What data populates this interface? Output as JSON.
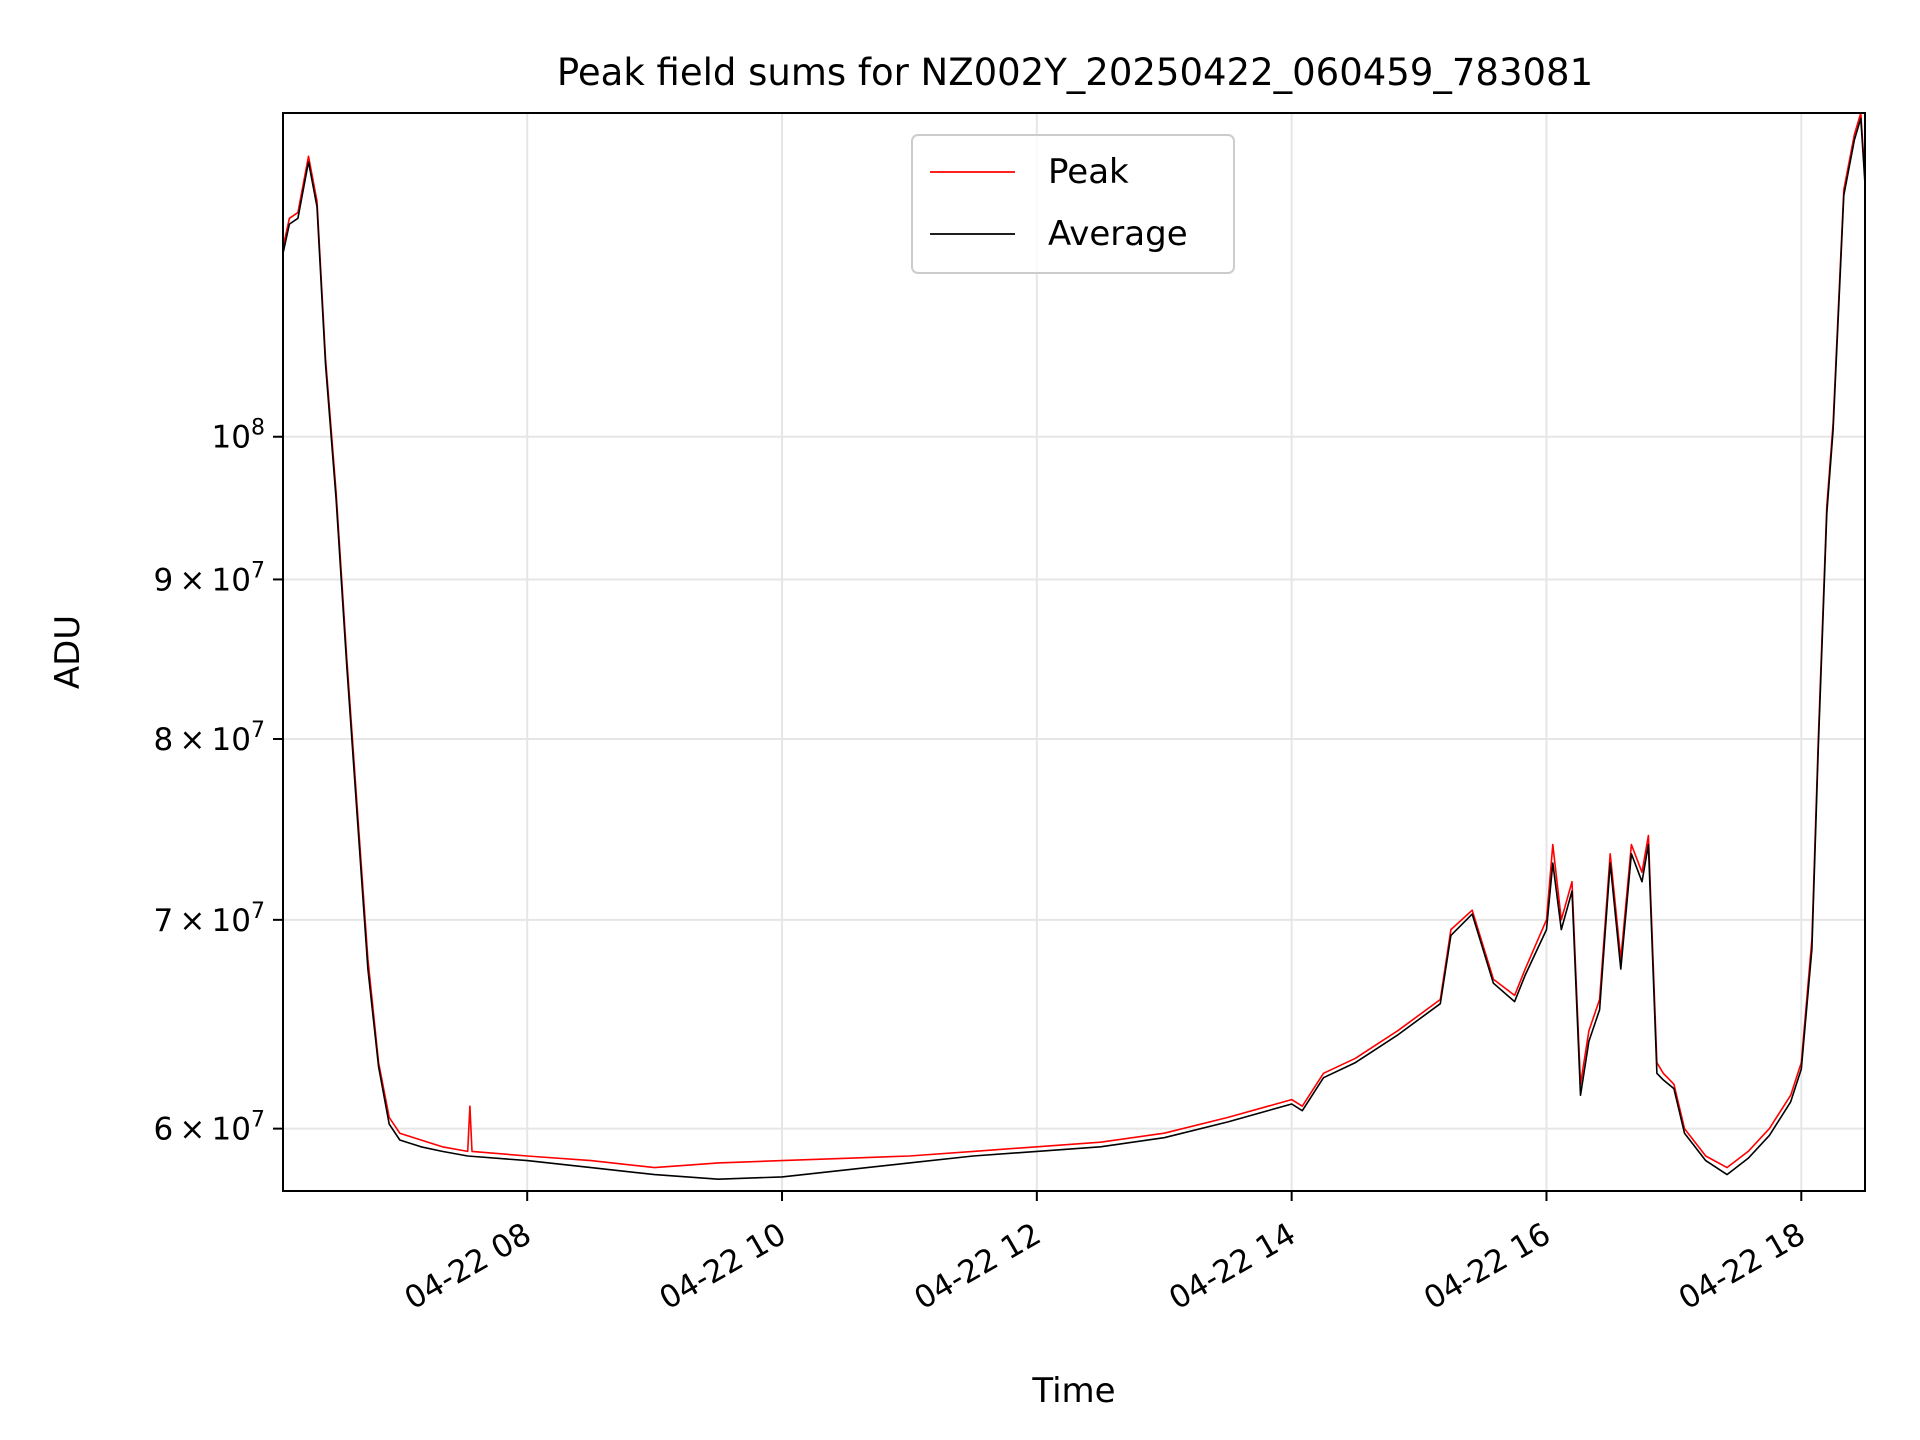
{
  "chart_data": {
    "type": "line",
    "title": "Peak field sums for NZ002Y_20250422_060459_783081",
    "xlabel": "Time",
    "ylabel": "ADU",
    "yscale": "log",
    "xlim": [
      "2025-04-22 06:05",
      "2025-04-22 18:30"
    ],
    "ylim": [
      57300000,
      127000000
    ],
    "grid": true,
    "legend_position": "upper center",
    "x_ticks": [
      {
        "value": "2025-04-22 08:00",
        "label": "04-22 08"
      },
      {
        "value": "2025-04-22 10:00",
        "label": "04-22 10"
      },
      {
        "value": "2025-04-22 12:00",
        "label": "04-22 12"
      },
      {
        "value": "2025-04-22 14:00",
        "label": "04-22 14"
      },
      {
        "value": "2025-04-22 16:00",
        "label": "04-22 16"
      },
      {
        "value": "2025-04-22 18:00",
        "label": "04-22 18"
      }
    ],
    "y_ticks": [
      {
        "value": 60000000,
        "mantissa": "6",
        "exponent": "7"
      },
      {
        "value": 70000000,
        "mantissa": "7",
        "exponent": "7"
      },
      {
        "value": 80000000,
        "mantissa": "8",
        "exponent": "7"
      },
      {
        "value": 90000000,
        "mantissa": "9",
        "exponent": "7"
      },
      {
        "value": 100000000,
        "mantissa": "",
        "exponent": "8"
      }
    ],
    "series": [
      {
        "name": "Peak",
        "color": "#ff0000",
        "x": [
          "2025-04-22 06:05",
          "2025-04-22 06:08",
          "2025-04-22 06:12",
          "2025-04-22 06:17",
          "2025-04-22 06:21",
          "2025-04-22 06:25",
          "2025-04-22 06:30",
          "2025-04-22 06:35",
          "2025-04-22 06:40",
          "2025-04-22 06:45",
          "2025-04-22 06:50",
          "2025-04-22 06:55",
          "2025-04-22 07:00",
          "2025-04-22 07:10",
          "2025-04-22 07:20",
          "2025-04-22 07:32",
          "2025-04-22 07:33",
          "2025-04-22 07:34",
          "2025-04-22 08:00",
          "2025-04-22 08:30",
          "2025-04-22 09:00",
          "2025-04-22 09:30",
          "2025-04-22 10:00",
          "2025-04-22 10:30",
          "2025-04-22 11:00",
          "2025-04-22 11:30",
          "2025-04-22 12:00",
          "2025-04-22 12:30",
          "2025-04-22 13:00",
          "2025-04-22 13:30",
          "2025-04-22 14:00",
          "2025-04-22 14:05",
          "2025-04-22 14:15",
          "2025-04-22 14:30",
          "2025-04-22 14:50",
          "2025-04-22 15:10",
          "2025-04-22 15:15",
          "2025-04-22 15:25",
          "2025-04-22 15:35",
          "2025-04-22 15:45",
          "2025-04-22 15:50",
          "2025-04-22 16:00",
          "2025-04-22 16:03",
          "2025-04-22 16:07",
          "2025-04-22 16:12",
          "2025-04-22 16:16",
          "2025-04-22 16:20",
          "2025-04-22 16:25",
          "2025-04-22 16:30",
          "2025-04-22 16:35",
          "2025-04-22 16:40",
          "2025-04-22 16:45",
          "2025-04-22 16:48",
          "2025-04-22 16:52",
          "2025-04-22 16:55",
          "2025-04-22 17:00",
          "2025-04-22 17:05",
          "2025-04-22 17:15",
          "2025-04-22 17:25",
          "2025-04-22 17:35",
          "2025-04-22 17:45",
          "2025-04-22 17:55",
          "2025-04-22 18:00",
          "2025-04-22 18:05",
          "2025-04-22 18:08",
          "2025-04-22 18:12",
          "2025-04-22 18:15",
          "2025-04-22 18:20",
          "2025-04-22 18:25",
          "2025-04-22 18:28",
          "2025-04-22 18:30"
        ],
        "y": [
          115000000,
          117500000,
          118000000,
          123000000,
          119000000,
          106000000,
          96000000,
          85000000,
          76000000,
          68000000,
          63000000,
          60500000,
          59800000,
          59500000,
          59200000,
          59000000,
          61000000,
          59000000,
          58800000,
          58600000,
          58300000,
          58500000,
          58600000,
          58700000,
          58800000,
          59000000,
          59200000,
          59400000,
          59800000,
          60500000,
          61300000,
          61000000,
          62500000,
          63200000,
          64500000,
          66000000,
          69500000,
          70500000,
          67000000,
          66200000,
          67500000,
          70000000,
          74000000,
          70000000,
          72000000,
          62000000,
          64500000,
          66000000,
          73500000,
          68000000,
          74000000,
          72500000,
          74500000,
          63000000,
          62500000,
          62000000,
          60000000,
          58800000,
          58300000,
          59000000,
          60000000,
          61500000,
          63000000,
          69000000,
          80000000,
          95000000,
          101000000,
          120000000,
          125000000,
          127000000,
          121000000
        ]
      },
      {
        "name": "Average",
        "color": "#000000",
        "x": [
          "2025-04-22 06:05",
          "2025-04-22 06:08",
          "2025-04-22 06:12",
          "2025-04-22 06:17",
          "2025-04-22 06:21",
          "2025-04-22 06:25",
          "2025-04-22 06:30",
          "2025-04-22 06:35",
          "2025-04-22 06:40",
          "2025-04-22 06:45",
          "2025-04-22 06:50",
          "2025-04-22 06:55",
          "2025-04-22 07:00",
          "2025-04-22 07:10",
          "2025-04-22 07:20",
          "2025-04-22 07:32",
          "2025-04-22 08:00",
          "2025-04-22 08:30",
          "2025-04-22 09:00",
          "2025-04-22 09:30",
          "2025-04-22 10:00",
          "2025-04-22 10:30",
          "2025-04-22 11:00",
          "2025-04-22 11:30",
          "2025-04-22 12:00",
          "2025-04-22 12:30",
          "2025-04-22 13:00",
          "2025-04-22 13:30",
          "2025-04-22 14:00",
          "2025-04-22 14:05",
          "2025-04-22 14:15",
          "2025-04-22 14:30",
          "2025-04-22 14:50",
          "2025-04-22 15:10",
          "2025-04-22 15:15",
          "2025-04-22 15:25",
          "2025-04-22 15:35",
          "2025-04-22 15:45",
          "2025-04-22 15:50",
          "2025-04-22 16:00",
          "2025-04-22 16:03",
          "2025-04-22 16:07",
          "2025-04-22 16:12",
          "2025-04-22 16:16",
          "2025-04-22 16:20",
          "2025-04-22 16:25",
          "2025-04-22 16:30",
          "2025-04-22 16:35",
          "2025-04-22 16:40",
          "2025-04-22 16:45",
          "2025-04-22 16:48",
          "2025-04-22 16:52",
          "2025-04-22 16:55",
          "2025-04-22 17:00",
          "2025-04-22 17:05",
          "2025-04-22 17:15",
          "2025-04-22 17:25",
          "2025-04-22 17:35",
          "2025-04-22 17:45",
          "2025-04-22 17:55",
          "2025-04-22 18:00",
          "2025-04-22 18:05",
          "2025-04-22 18:08",
          "2025-04-22 18:12",
          "2025-04-22 18:15",
          "2025-04-22 18:20",
          "2025-04-22 18:25",
          "2025-04-22 18:28",
          "2025-04-22 18:30"
        ],
        "y": [
          114500000,
          117000000,
          117500000,
          122500000,
          118500000,
          105500000,
          95500000,
          84500000,
          75500000,
          67500000,
          62800000,
          60200000,
          59500000,
          59200000,
          59000000,
          58800000,
          58600000,
          58300000,
          58000000,
          57800000,
          57900000,
          58200000,
          58500000,
          58800000,
          59000000,
          59200000,
          59600000,
          60300000,
          61100000,
          60800000,
          62300000,
          63000000,
          64300000,
          65800000,
          69200000,
          70300000,
          66800000,
          65900000,
          67200000,
          69500000,
          73000000,
          69500000,
          71500000,
          61500000,
          64000000,
          65500000,
          73000000,
          67500000,
          73500000,
          72000000,
          74000000,
          62500000,
          62200000,
          61800000,
          59800000,
          58600000,
          58000000,
          58700000,
          59700000,
          61200000,
          62700000,
          68500000,
          79500000,
          94500000,
          100500000,
          119500000,
          124500000,
          126500000,
          120500000
        ]
      }
    ]
  }
}
